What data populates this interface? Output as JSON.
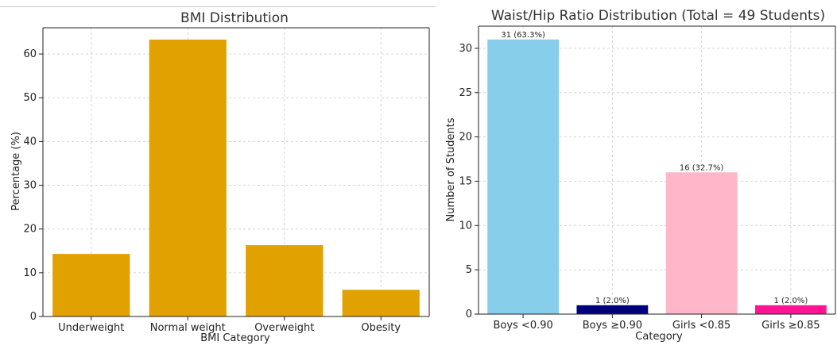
{
  "chart_data": [
    {
      "type": "bar",
      "title": "BMI Distribution",
      "xlabel": "BMI Category",
      "ylabel": "Percentage (%)",
      "categories": [
        "Underweight",
        "Normal weight",
        "Overweight",
        "Obesity"
      ],
      "values": [
        14.3,
        63.3,
        16.3,
        6.1
      ],
      "ylim": [
        0,
        66
      ],
      "yticks": [
        0,
        10,
        20,
        30,
        40,
        50,
        60
      ],
      "grid": true,
      "colors": [
        "#E1A100",
        "#E1A100",
        "#E1A100",
        "#E1A100"
      ]
    },
    {
      "type": "bar",
      "title": "Waist/Hip Ratio Distribution (Total = 49 Students)",
      "xlabel": "Category",
      "ylabel": "Number of Students",
      "categories": [
        "Boys <0.90",
        "Boys ≥0.90",
        "Girls <0.85",
        "Girls ≥0.85"
      ],
      "values": [
        31,
        1,
        16,
        1
      ],
      "data_labels": [
        "31 (63.3%)",
        "1 (2.0%)",
        "16 (32.7%)",
        "1 (2.0%)"
      ],
      "ylim": [
        0,
        32.5
      ],
      "yticks": [
        0,
        5,
        10,
        15,
        20,
        25,
        30
      ],
      "grid": true,
      "colors": [
        "#87CEEB",
        "#00007F",
        "#FFB6C8",
        "#FF1493"
      ]
    }
  ]
}
